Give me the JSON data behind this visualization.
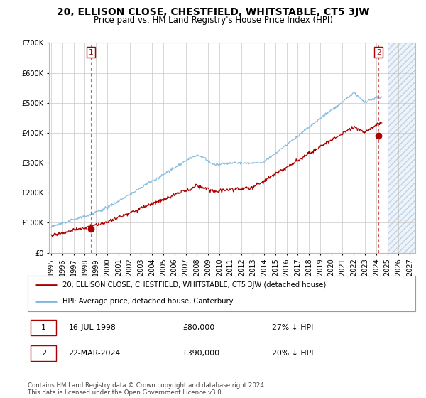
{
  "title": "20, ELLISON CLOSE, CHESTFIELD, WHITSTABLE, CT5 3JW",
  "subtitle": "Price paid vs. HM Land Registry's House Price Index (HPI)",
  "ylim": [
    0,
    700000
  ],
  "xlim_start": 1994.8,
  "xlim_end": 2027.5,
  "xticks": [
    1995,
    1996,
    1997,
    1998,
    1999,
    2000,
    2001,
    2002,
    2003,
    2004,
    2005,
    2006,
    2007,
    2008,
    2009,
    2010,
    2011,
    2012,
    2013,
    2014,
    2015,
    2016,
    2017,
    2018,
    2019,
    2020,
    2021,
    2022,
    2023,
    2024,
    2025,
    2026,
    2027
  ],
  "hpi_color": "#7ab8e0",
  "price_color": "#aa0000",
  "point1_x": 1998.54,
  "point1_y": 80000,
  "point2_x": 2024.22,
  "point2_y": 390000,
  "hatch_start": 2025.0,
  "legend_house": "20, ELLISON CLOSE, CHESTFIELD, WHITSTABLE, CT5 3JW (detached house)",
  "legend_hpi": "HPI: Average price, detached house, Canterbury",
  "note1_label": "1",
  "note1_date": "16-JUL-1998",
  "note1_price": "£80,000",
  "note1_hpi": "27% ↓ HPI",
  "note2_label": "2",
  "note2_date": "22-MAR-2024",
  "note2_price": "£390,000",
  "note2_hpi": "20% ↓ HPI",
  "copyright": "Contains HM Land Registry data © Crown copyright and database right 2024.\nThis data is licensed under the Open Government Licence v3.0.",
  "bg_color": "#ffffff",
  "grid_color": "#c8c8c8",
  "title_fontsize": 10,
  "subtitle_fontsize": 8.5,
  "tick_fontsize": 7
}
